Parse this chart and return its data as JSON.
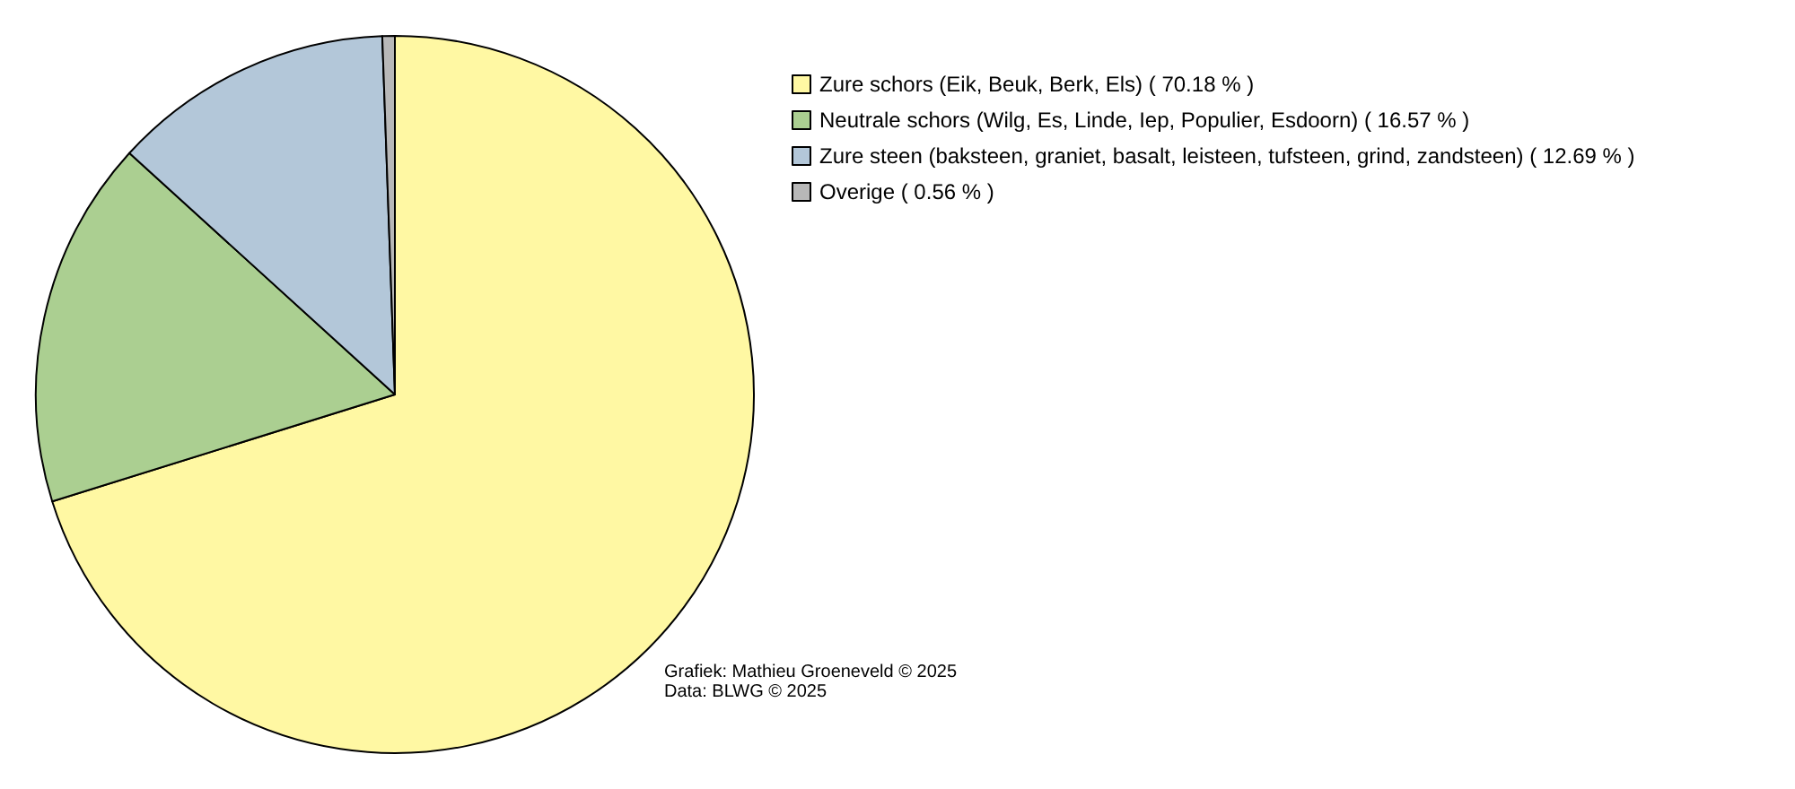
{
  "chart_data": {
    "type": "pie",
    "categories": [
      "Zure schors (Eik, Beuk, Berk, Els) ( 70.18 % )",
      "Neutrale schors (Wilg, Es, Linde, Iep, Populier, Esdoorn) ( 16.57 % )",
      "Zure steen (baksteen, graniet, basalt, leisteen, tufsteen, grind, zandsteen) ( 12.69 % )",
      "Overige ( 0.56 % )"
    ],
    "values": [
      70.18,
      16.57,
      12.69,
      0.56
    ],
    "colors": [
      "#fff8a3",
      "#abcf91",
      "#b3c7d9",
      "#b8b8b8"
    ],
    "legend": "top right",
    "annotations": [
      "Grafiek: Mathieu Groeneveld © 2025",
      "Data: BLWG © 2025"
    ]
  }
}
